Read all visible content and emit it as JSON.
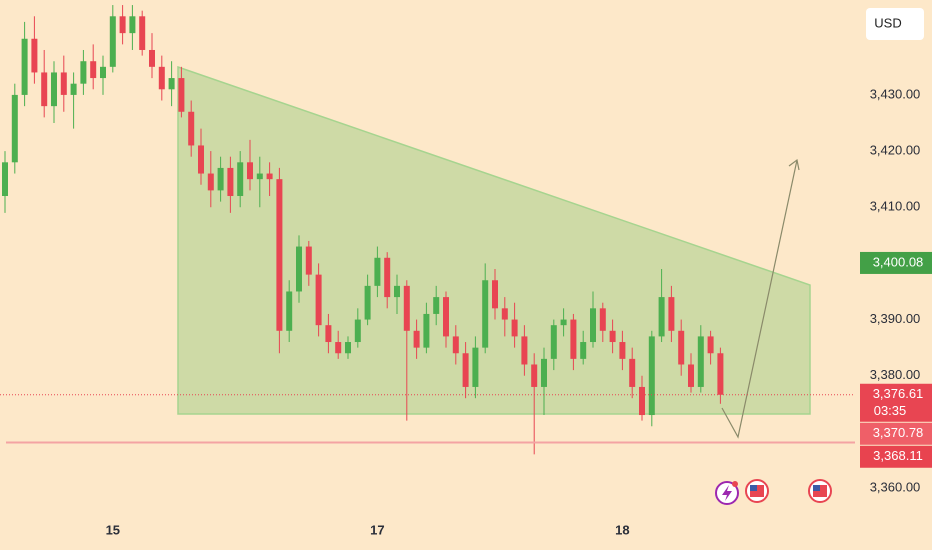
{
  "currency_button": "USD",
  "chart_data": {
    "type": "candlestick",
    "categories": [
      null,
      null,
      null,
      null,
      null,
      null,
      null,
      null,
      null,
      null,
      null,
      "15",
      null,
      null,
      null,
      null,
      null,
      null,
      null,
      null,
      null,
      null,
      null,
      null,
      null,
      null,
      null,
      null,
      null,
      null,
      null,
      null,
      null,
      null,
      null,
      null,
      null,
      null,
      "17",
      null,
      null,
      null,
      null,
      null,
      null,
      null,
      null,
      null,
      null,
      null,
      null,
      null,
      null,
      null,
      null,
      null,
      null,
      null,
      null,
      null,
      null,
      null,
      null,
      "18",
      null,
      null,
      null,
      null,
      null,
      null,
      null,
      null,
      null,
      null
    ],
    "open": [
      3412,
      3418,
      3430,
      3440,
      3434,
      3428,
      3434,
      3430,
      3432,
      3436,
      3433,
      3435,
      3444,
      3441,
      3444,
      3438,
      3435,
      3431,
      3433,
      3427,
      3421,
      3416,
      3413,
      3417,
      3412,
      3418,
      3415,
      3416,
      3415,
      3388,
      3395,
      3403,
      3398,
      3389,
      3386,
      3384,
      3386,
      3390,
      3396,
      3401,
      3394,
      3396,
      3388,
      3385,
      3391,
      3394,
      3387,
      3384,
      3378,
      3385,
      3397,
      3392,
      3390,
      3387,
      3382,
      3378,
      3383,
      3389,
      3390,
      3383,
      3386,
      3392,
      3388,
      3386,
      3383,
      3378,
      3373,
      3387,
      3394,
      3388,
      3382,
      3378,
      3387,
      3384
    ],
    "high": [
      3420,
      3432,
      3443,
      3444,
      3438,
      3436,
      3437,
      3434,
      3438,
      3439,
      3437,
      3446,
      3446,
      3446,
      3445,
      3441,
      3437,
      3436,
      3435,
      3429,
      3424,
      3420,
      3419,
      3419,
      3420,
      3422,
      3419,
      3418,
      3417,
      3397,
      3405,
      3404,
      3400,
      3391,
      3388,
      3387,
      3392,
      3398,
      3403,
      3402,
      3398,
      3397,
      3390,
      3393,
      3396,
      3395,
      3389,
      3386,
      3387,
      3400,
      3399,
      3394,
      3393,
      3389,
      3384,
      3385,
      3390,
      3392,
      3391,
      3388,
      3395,
      3393,
      3390,
      3388,
      3385,
      3380,
      3388,
      3399,
      3396,
      3390,
      3384,
      3389,
      3388,
      3385
    ],
    "low": [
      3409,
      3416,
      3428,
      3432,
      3426,
      3425,
      3427,
      3424,
      3430,
      3431,
      3430,
      3434,
      3439,
      3438,
      3437,
      3433,
      3429,
      3428,
      3426,
      3419,
      3414,
      3410,
      3411,
      3409,
      3410,
      3413,
      3410,
      3412,
      3384,
      3386,
      3393,
      3396,
      3387,
      3384,
      3383,
      3383,
      3385,
      3389,
      3394,
      3392,
      3391,
      3372,
      3383,
      3384,
      3389,
      3385,
      3382,
      3376,
      3376,
      3384,
      3390,
      3387,
      3385,
      3380,
      3366,
      3373,
      3381,
      3387,
      3381,
      3382,
      3385,
      3386,
      3384,
      3381,
      3376,
      3372,
      3371,
      3386,
      3386,
      3380,
      3377,
      3377,
      3382,
      3375
    ],
    "close": [
      3418,
      3430,
      3440,
      3434,
      3428,
      3434,
      3430,
      3432,
      3436,
      3433,
      3435,
      3444,
      3441,
      3444,
      3438,
      3435,
      3431,
      3433,
      3427,
      3421,
      3416,
      3413,
      3417,
      3412,
      3418,
      3415,
      3416,
      3415,
      3388,
      3395,
      3403,
      3398,
      3389,
      3386,
      3384,
      3386,
      3390,
      3396,
      3401,
      3394,
      3396,
      3388,
      3385,
      3391,
      3394,
      3387,
      3384,
      3378,
      3385,
      3397,
      3392,
      3390,
      3387,
      3382,
      3378,
      3383,
      3389,
      3390,
      3383,
      3386,
      3392,
      3388,
      3386,
      3383,
      3378,
      3373,
      3387,
      3394,
      3388,
      3382,
      3378,
      3387,
      3384,
      3376.61
    ],
    "up_color": "#4caf50",
    "down_color": "#e84552",
    "ylim": [
      3355.2,
      3446.9
    ],
    "yticks": [
      {
        "value": 3360,
        "label": "3,360.00"
      },
      {
        "value": 3370,
        "label": "3,370.00"
      },
      {
        "value": 3380,
        "label": "3,380.00"
      },
      {
        "value": 3390,
        "label": "3,390.00"
      },
      {
        "value": 3400,
        "label": "3,400.00"
      },
      {
        "value": 3410,
        "label": "3,410.00"
      },
      {
        "value": 3420,
        "label": "3,420.00"
      },
      {
        "value": 3430,
        "label": "3,430.00"
      }
    ],
    "price_labels": [
      {
        "value": 3400.08,
        "label": "3,400.08",
        "color": "#43a047"
      },
      {
        "value": 3376.61,
        "label": "3,376.61",
        "countdown": "03:35",
        "color": "#e84552",
        "line": "dotted"
      },
      {
        "value": 3370.78,
        "label": "3,370.78",
        "color": "#ef5f68"
      },
      {
        "value": 3368.11,
        "label": "3,368.11",
        "color": "#e8434f",
        "line": "solid"
      }
    ]
  }
}
